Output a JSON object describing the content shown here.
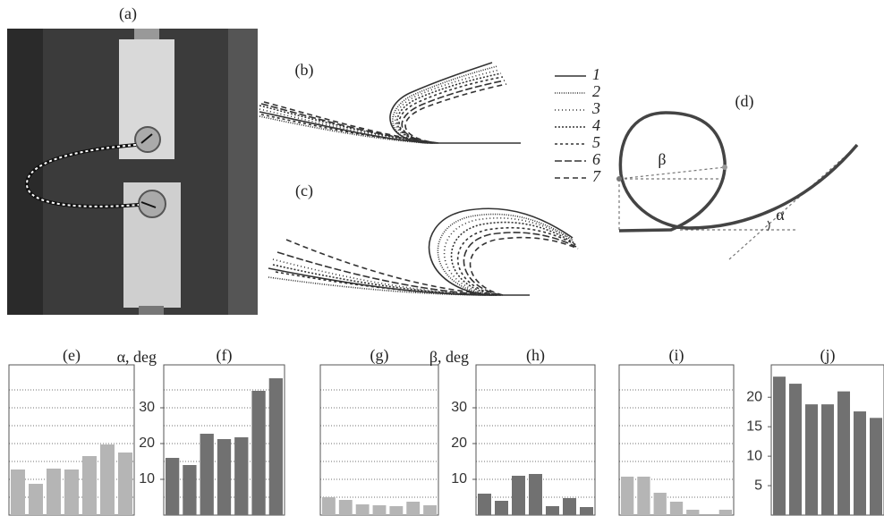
{
  "figure": {
    "panel_labels": {
      "a": "(a)",
      "b": "(b)",
      "c": "(c)",
      "d": "(d)"
    },
    "legend": [
      "1",
      "2",
      "3",
      "4",
      "5",
      "6",
      "7"
    ],
    "angle_labels": {
      "beta": "β",
      "alpha": "α"
    }
  },
  "chart_data": [
    {
      "type": "bar",
      "title": "(e)",
      "values": [
        12.75,
        8.75,
        13,
        12.75,
        16.5,
        19.75,
        17.5
      ],
      "color": "#b5b5b5",
      "ylim": [
        0,
        42
      ],
      "gridlines": [
        5,
        10,
        15,
        20,
        25,
        30,
        35
      ]
    },
    {
      "type": "bar",
      "title": "(f)",
      "ylabel": "α, deg",
      "values": [
        16,
        14,
        22.75,
        21.25,
        21.75,
        34.75,
        38.25
      ],
      "color": "#717171",
      "ylim": [
        0,
        42
      ],
      "yticks": [
        10,
        20,
        30
      ],
      "gridlines": [
        5,
        10,
        15,
        20,
        25,
        30,
        35
      ]
    },
    {
      "type": "bar",
      "title": "(g)",
      "values": [
        5,
        4.25,
        3,
        2.75,
        2.5,
        3.75,
        2.75
      ],
      "color": "#b5b5b5",
      "ylim": [
        0,
        42
      ],
      "gridlines": [
        5,
        10,
        15,
        20,
        25,
        30,
        35
      ]
    },
    {
      "type": "bar",
      "title": "(h)",
      "ylabel": "β, deg",
      "values": [
        6,
        4,
        11,
        11.5,
        2.5,
        4.75,
        2.25
      ],
      "color": "#717171",
      "ylim": [
        0,
        42
      ],
      "yticks": [
        10,
        20,
        30
      ],
      "gridlines": [
        5,
        10,
        15,
        20,
        25,
        30,
        35
      ]
    },
    {
      "type": "bar",
      "title": "(i)",
      "values": [
        10.75,
        10.75,
        6.25,
        3.75,
        1.5,
        null,
        1.5
      ],
      "color": "#b5b5b5",
      "ylim": [
        0,
        42
      ],
      "gridlines": [
        5,
        10,
        15,
        20,
        25,
        30,
        35
      ]
    },
    {
      "type": "bar",
      "title": "(j)",
      "values": [
        23.5,
        22.3,
        18.8,
        18.8,
        21,
        17.6,
        16.5
      ],
      "color": "#717171",
      "ylim": [
        0,
        25.5
      ],
      "yticks": [
        5,
        10,
        15,
        20
      ]
    }
  ]
}
